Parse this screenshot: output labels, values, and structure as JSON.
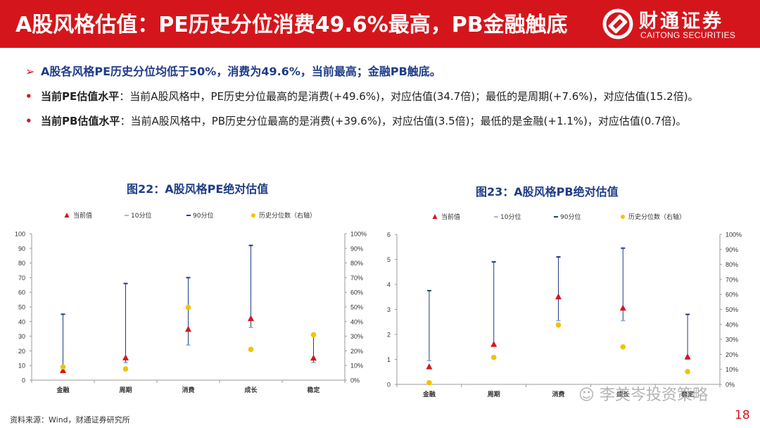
{
  "header": {
    "title": "A股风格估值：PE历史分位消费49.6%最高，PB金融触底",
    "brand_cn": "财通证券",
    "brand_en": "CAITONG SECURITIES",
    "color": "#d4161c"
  },
  "summary": {
    "headline": "A股各风格PE历史分位均低于50%，消费为49.6%，当前最高；金融PB触底。",
    "pe_label": "当前PE估值水平",
    "pe_text": "：当前A股风格中，PE历史分位最高的是消费(+49.6%)，对应估值(34.7倍)；最低的是周期(+7.6%)，对应估值(15.2倍)。",
    "pb_label": "当前PB估值水平",
    "pb_text": "：当前A股风格中，PB历史分位最高的是消费(+39.6%)，对应估值(3.5倍)；最低的是金融(+1.1%)，对应估值(0.7倍)。"
  },
  "chart_data": [
    {
      "type": "range-dot",
      "title": "图22：A股风格PE绝对估值",
      "categories": [
        "金融",
        "周期",
        "消费",
        "成长",
        "稳定"
      ],
      "legend": [
        "当前值",
        "10分位",
        "90分位",
        "历史分位数（右轴）"
      ],
      "ylim": [
        0,
        100
      ],
      "yticks": [
        "0",
        "10",
        "20",
        "30",
        "40",
        "50",
        "60",
        "70",
        "80",
        "90",
        "100"
      ],
      "y2lim": [
        0,
        1
      ],
      "y2ticks": [
        "0%",
        "10%",
        "20%",
        "30%",
        "40%",
        "50%",
        "60%",
        "70%",
        "80%",
        "90%",
        "100%"
      ],
      "series": [
        {
          "name": "当前值",
          "values": [
            6.5,
            15.2,
            34.7,
            42,
            15
          ]
        },
        {
          "name": "10分位",
          "values": [
            6,
            12,
            24,
            36,
            12
          ]
        },
        {
          "name": "90分位",
          "values": [
            45,
            66,
            70,
            92,
            31
          ]
        },
        {
          "name": "历史分位数（右轴）",
          "values": [
            0.09,
            0.076,
            0.496,
            0.21,
            0.31
          ]
        }
      ],
      "colors": {
        "current": "#d4161c",
        "p10": "#7ea6d8",
        "p90": "#1f3c88",
        "pct": "#f2c200"
      }
    },
    {
      "type": "range-dot",
      "title": "图23：A股风格PB绝对估值",
      "categories": [
        "金融",
        "周期",
        "消费",
        "成长",
        "稳定"
      ],
      "legend": [
        "当前值",
        "10分位",
        "90分位",
        "历史分位数（右轴）"
      ],
      "ylim": [
        0,
        6
      ],
      "yticks": [
        "0",
        "1",
        "2",
        "3",
        "4",
        "5",
        "6"
      ],
      "y2lim": [
        0,
        1
      ],
      "y2ticks": [
        "0%",
        "10%",
        "20%",
        "30%",
        "40%",
        "50%",
        "60%",
        "70%",
        "80%",
        "90%",
        "100%"
      ],
      "series": [
        {
          "name": "当前值",
          "values": [
            0.7,
            1.6,
            3.5,
            3.05,
            1.1
          ]
        },
        {
          "name": "10分位",
          "values": [
            0.95,
            1.55,
            2.55,
            2.55,
            1.0
          ]
        },
        {
          "name": "90分位",
          "values": [
            3.75,
            4.9,
            5.1,
            5.45,
            2.8
          ]
        },
        {
          "name": "历史分位数（右轴）",
          "values": [
            0.011,
            0.18,
            0.396,
            0.25,
            0.085
          ]
        }
      ],
      "colors": {
        "current": "#d4161c",
        "p10": "#7ea6d8",
        "p90": "#1f3c88",
        "pct": "#f2c200"
      }
    }
  ],
  "footer": {
    "source": "资料来源：Wind，财通证券研究所",
    "watermark": "李美岑投资策略",
    "page": "18"
  }
}
